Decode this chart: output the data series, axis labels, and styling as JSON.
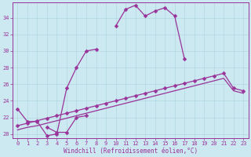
{
  "background_color": "#cce8f0",
  "line_color": "#993399",
  "grid_color": "#aad4dd",
  "xlabel": "Windchill (Refroidissement éolien,°C)",
  "x_data": [
    0,
    1,
    2,
    3,
    4,
    5,
    6,
    7,
    8,
    9,
    10,
    11,
    12,
    13,
    14,
    15,
    16,
    17,
    18,
    19,
    20,
    21,
    22,
    23
  ],
  "y_upper": [
    23.0,
    21.5,
    21.5,
    19.8,
    20.0,
    25.5,
    28.0,
    30.0,
    30.2,
    null,
    33.0,
    35.0,
    35.5,
    34.2,
    34.8,
    35.2,
    34.2,
    29.0,
    null,
    null,
    null,
    null,
    null,
    null
  ],
  "y_mid_seg": [
    null,
    null,
    null,
    20.8,
    20.2,
    20.2,
    22.0,
    22.2,
    null,
    null,
    null,
    null,
    null,
    null,
    null,
    null,
    null,
    null,
    null,
    null,
    null,
    null,
    null,
    null
  ],
  "y_line2": [
    20.5,
    20.8,
    21.0,
    21.3,
    21.6,
    21.9,
    22.2,
    22.5,
    22.8,
    23.1,
    23.4,
    23.7,
    24.0,
    24.3,
    24.6,
    24.9,
    25.2,
    25.5,
    25.8,
    26.1,
    26.4,
    26.7,
    25.2,
    24.9
  ],
  "y_line3": [
    21.0,
    21.3,
    21.6,
    21.9,
    22.2,
    22.5,
    22.8,
    23.1,
    23.4,
    23.7,
    24.0,
    24.3,
    24.6,
    24.9,
    25.2,
    25.5,
    25.8,
    26.1,
    26.4,
    26.7,
    27.0,
    27.3,
    25.5,
    25.2
  ],
  "ylim": [
    19.5,
    35.8
  ],
  "xlim": [
    -0.5,
    23.5
  ],
  "yticks": [
    20,
    22,
    24,
    26,
    28,
    30,
    32,
    34
  ],
  "xticks": [
    0,
    1,
    2,
    3,
    4,
    5,
    6,
    7,
    8,
    9,
    10,
    11,
    12,
    13,
    14,
    15,
    16,
    17,
    18,
    19,
    20,
    21,
    22,
    23
  ],
  "tick_fontsize": 5.0,
  "xlabel_fontsize": 5.5,
  "lw": 0.9,
  "ms": 2.5
}
